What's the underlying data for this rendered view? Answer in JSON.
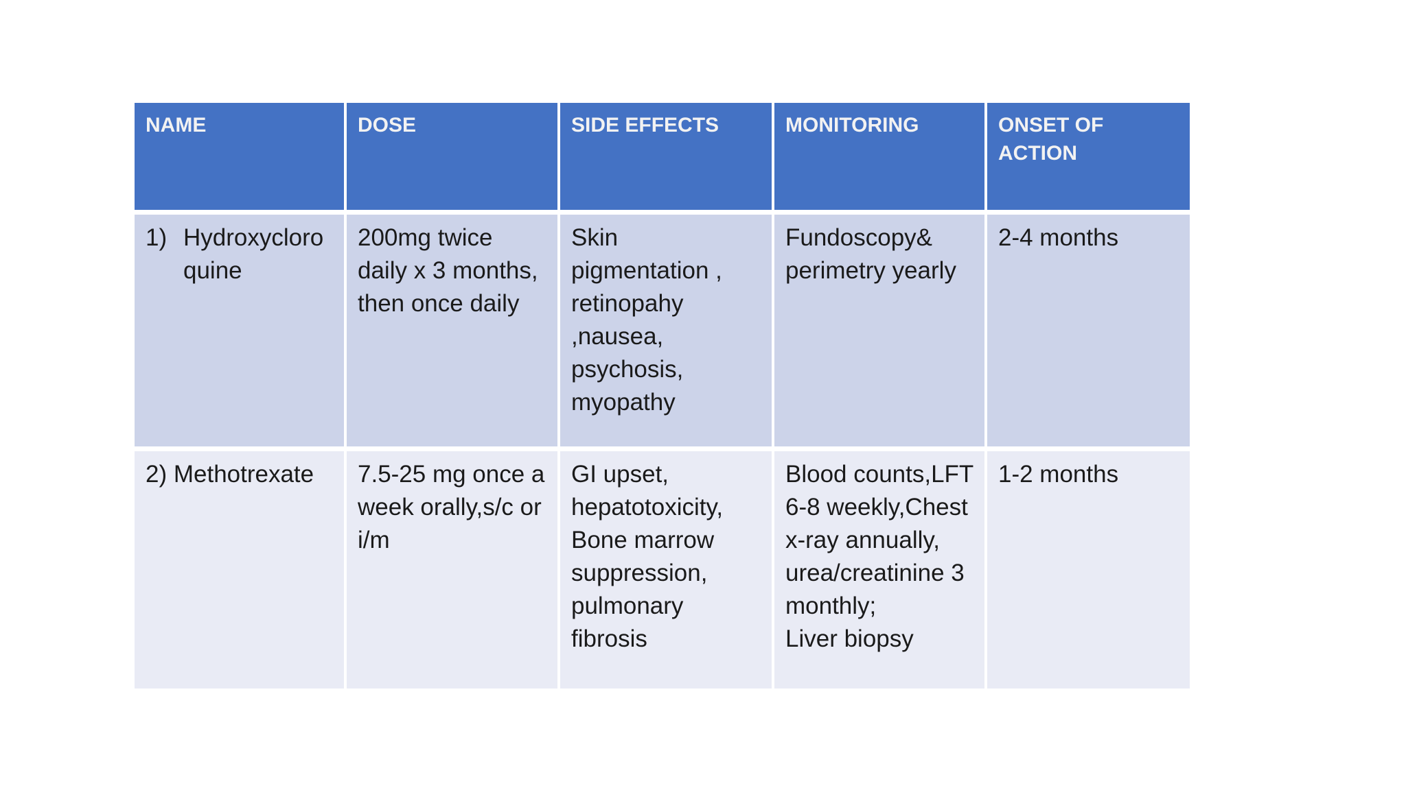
{
  "slide": {
    "background": "#ffffff"
  },
  "table": {
    "columns": [
      "NAME",
      "DOSE",
      "SIDE EFFECTS",
      "MONITORING",
      "ONSET OF\nACTION"
    ],
    "rows": [
      {
        "list_number": "1)",
        "name": "Hydroxycloro\nquine",
        "dose": "200mg twice\ndaily x 3 months,\nthen once daily",
        "side_effects": "Skin\npigmentation ,\nretinopahy\n,nausea,\npsychosis,\nmyopathy",
        "monitoring": "Fundoscopy&\nperimetry yearly",
        "onset_of_action": "2-4 months"
      },
      {
        "list_number": "",
        "name": "2) Methotrexate",
        "dose": "7.5-25 mg once a\nweek orally,s/c or\ni/m",
        "side_effects": "GI upset,\nhepatotoxicity,\nBone marrow\nsuppression,\n pulmonary\nfibrosis",
        "monitoring": "Blood counts,LFT\n6-8 weekly,Chest\nx-ray annually,\nurea/creatinine 3\nmonthly;\nLiver biopsy",
        "onset_of_action": "1-2 months"
      }
    ],
    "colors": {
      "slide_bg": "#ffffff",
      "header_bg": "#4472c4",
      "header_text": "#f2f2f2",
      "row_odd_bg": "#ccd3e9",
      "row_even_bg": "#e9ebf5",
      "body_text": "#1a1a1a",
      "grid_line": "#ffffff"
    }
  }
}
